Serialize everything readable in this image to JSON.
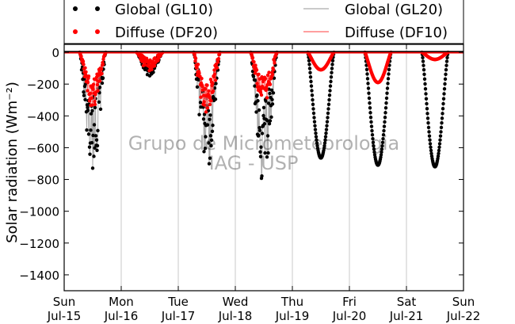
{
  "chart_data": {
    "type": "scatter",
    "title": "",
    "ylabel": "Solar radiation (Wm⁻²)",
    "xlabel": "",
    "ylim": [
      -1500,
      50
    ],
    "yticks": [
      0,
      -200,
      -400,
      -600,
      -800,
      -1000,
      -1200,
      -1400
    ],
    "xlim_day": [
      0,
      7
    ],
    "xticks": [
      {
        "day": 0,
        "weekday": "Sun",
        "date": "Jul-15"
      },
      {
        "day": 1,
        "weekday": "Mon",
        "date": "Jul-16"
      },
      {
        "day": 2,
        "weekday": "Tue",
        "date": "Jul-17"
      },
      {
        "day": 3,
        "weekday": "Wed",
        "date": "Jul-18"
      },
      {
        "day": 4,
        "weekday": "Thu",
        "date": "Jul-19"
      },
      {
        "day": 5,
        "weekday": "Fri",
        "date": "Jul-20"
      },
      {
        "day": 6,
        "weekday": "Sat",
        "date": "Jul-21"
      },
      {
        "day": 7,
        "weekday": "Sun",
        "date": "Jul-22"
      }
    ],
    "grid": "vertical",
    "legend": "top",
    "watermark": [
      "Grupo de Micrometeorologia",
      "IAG - USP"
    ],
    "series": [
      {
        "name": "Global (GL10)",
        "style": "markers",
        "color": "#000000",
        "daily_peak": [
          -750,
          -150,
          -750,
          -840,
          -665,
          -710,
          -720
        ]
      },
      {
        "name": "Diffuse (DF20)",
        "style": "markers",
        "color": "#ff0000",
        "daily_peak": [
          -350,
          -130,
          -420,
          -330,
          -110,
          -190,
          -45
        ]
      },
      {
        "name": "Global (GL20)",
        "style": "line",
        "color": "#aaaaaa",
        "daily_peak": [
          -750,
          -150,
          -750,
          -840,
          -665,
          -710,
          -720
        ]
      },
      {
        "name": "Diffuse (DF10)",
        "style": "line",
        "color": "#ff6666",
        "daily_peak": [
          -350,
          -130,
          -420,
          -330,
          -110,
          -190,
          -45
        ]
      }
    ]
  }
}
